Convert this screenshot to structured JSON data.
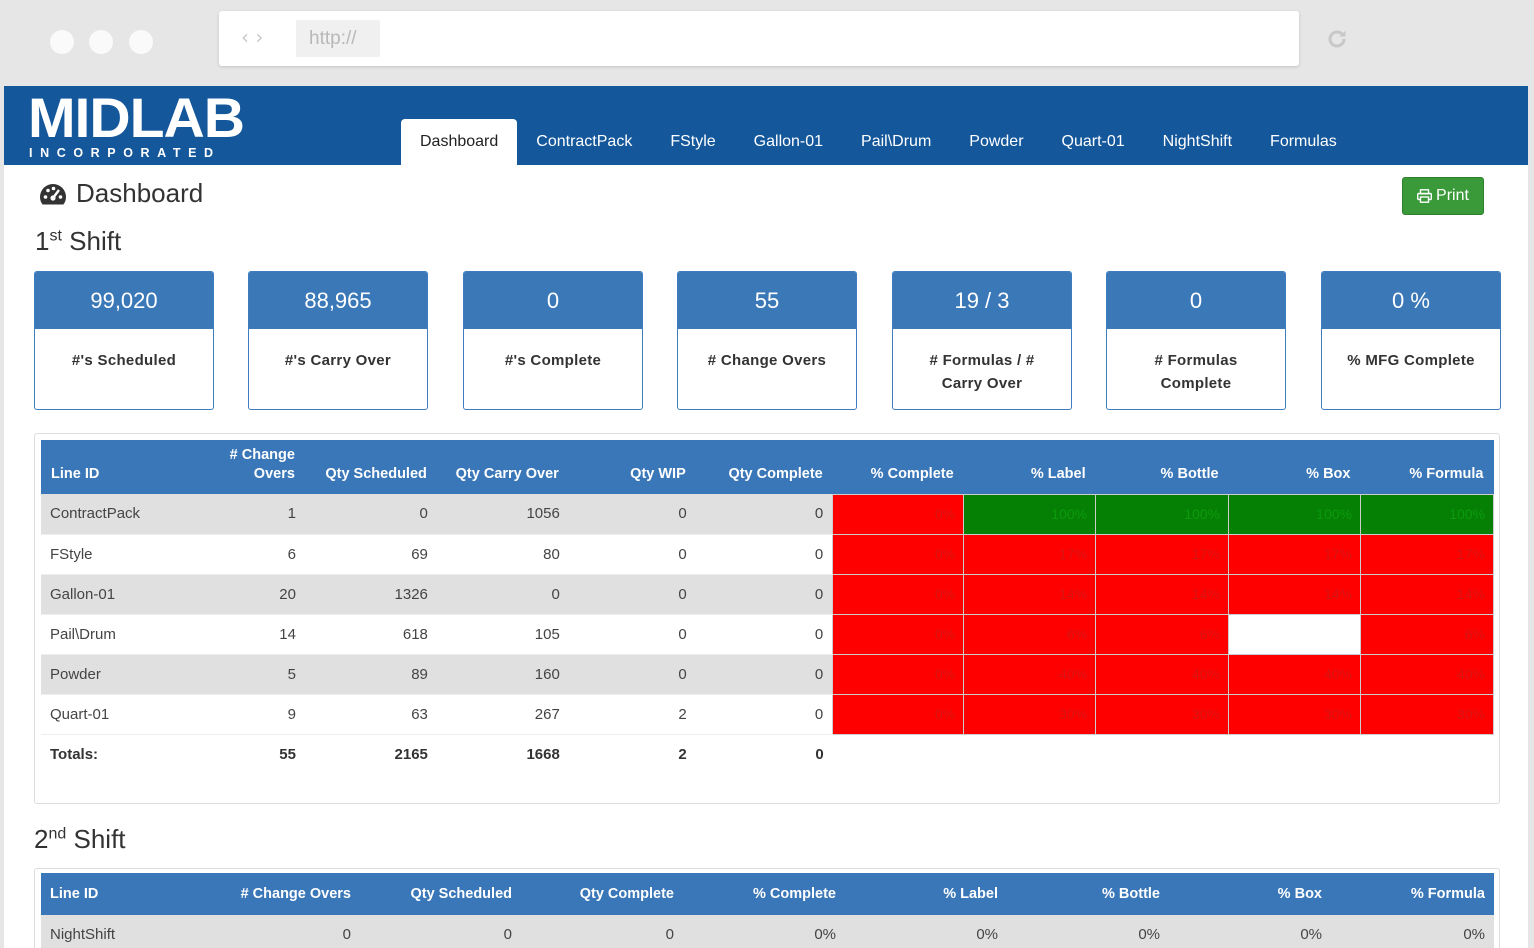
{
  "browser": {
    "url_placeholder": "http://",
    "nav_arrows": "‹ ›"
  },
  "logo": {
    "name": "MIDLAB",
    "sub": "INCORPORATED"
  },
  "tabs": [
    {
      "label": "Dashboard"
    },
    {
      "label": "ContractPack"
    },
    {
      "label": "FStyle"
    },
    {
      "label": "Gallon-01"
    },
    {
      "label": "Pail\\Drum"
    },
    {
      "label": "Powder"
    },
    {
      "label": "Quart-01"
    },
    {
      "label": "NightShift"
    },
    {
      "label": "Formulas"
    }
  ],
  "page": {
    "title": "Dashboard",
    "print_label": "Print"
  },
  "shift1": {
    "num": "1",
    "suffix": "st",
    "word": "Shift",
    "cards": [
      {
        "value": "99,020",
        "label": "#'s Scheduled"
      },
      {
        "value": "88,965",
        "label": "#'s Carry Over"
      },
      {
        "value": "0",
        "label": "#'s Complete"
      },
      {
        "value": "55",
        "label": "# Change Overs"
      },
      {
        "value": "19 / 3",
        "label": "# Formulas / # Carry Over"
      },
      {
        "value": "0",
        "label": "# Formulas Complete"
      },
      {
        "value": "0 %",
        "label": "% MFG Complete"
      }
    ],
    "headers": [
      "Line ID",
      "# Change Overs",
      "Qty Scheduled",
      "Qty Carry Over",
      "Qty WIP",
      "Qty Complete",
      "% Complete",
      "% Label",
      "% Bottle",
      "% Box",
      "% Formula"
    ],
    "rows": [
      {
        "cells": [
          "ContractPack",
          "1",
          "0",
          "1056",
          "0",
          "0",
          "0%",
          "100%",
          "100%",
          "100%",
          "100%"
        ],
        "status": [
          "red",
          "green",
          "green",
          "green",
          "green"
        ]
      },
      {
        "cells": [
          "FStyle",
          "6",
          "69",
          "80",
          "0",
          "0",
          "0%",
          "17%",
          "17%",
          "17%",
          "17%"
        ],
        "status": [
          "red",
          "red",
          "red",
          "red",
          "red"
        ]
      },
      {
        "cells": [
          "Gallon-01",
          "20",
          "1326",
          "0",
          "0",
          "0",
          "0%",
          "14%",
          "14%",
          "14%",
          "14%"
        ],
        "status": [
          "red",
          "red",
          "red",
          "red",
          "red"
        ]
      },
      {
        "cells": [
          "Pail\\Drum",
          "14",
          "618",
          "105",
          "0",
          "0",
          "0%",
          "6%",
          "6%",
          "",
          "6%"
        ],
        "status": [
          "red",
          "red",
          "red",
          "white",
          "red"
        ]
      },
      {
        "cells": [
          "Powder",
          "5",
          "89",
          "160",
          "0",
          "0",
          "0%",
          "40%",
          "40%",
          "40%",
          "40%"
        ],
        "status": [
          "red",
          "red",
          "red",
          "red",
          "red"
        ]
      },
      {
        "cells": [
          "Quart-01",
          "9",
          "63",
          "267",
          "2",
          "0",
          "0%",
          "30%",
          "30%",
          "30%",
          "30%"
        ],
        "status": [
          "red",
          "red",
          "red",
          "red",
          "red"
        ]
      }
    ],
    "totals": {
      "label": "Totals:",
      "change_overs": "55",
      "qty_scheduled": "2165",
      "qty_carry_over": "1668",
      "qty_wip": "2",
      "qty_complete": "0"
    }
  },
  "shift2": {
    "num": "2",
    "suffix": "nd",
    "word": "Shift",
    "headers": [
      "Line ID",
      "# Change Overs",
      "Qty Scheduled",
      "Qty Complete",
      "% Complete",
      "% Label",
      "% Bottle",
      "% Box",
      "% Formula"
    ],
    "rows": [
      {
        "cells": [
          "NightShift",
          "0",
          "0",
          "0",
          "0%",
          "0%",
          "0%",
          "0%",
          "0%"
        ]
      }
    ]
  },
  "colors": {
    "brand": "#14579b",
    "header": "#3a77b8",
    "red": "#ff0000",
    "green": "#058005",
    "print": "#3a9a3a"
  }
}
